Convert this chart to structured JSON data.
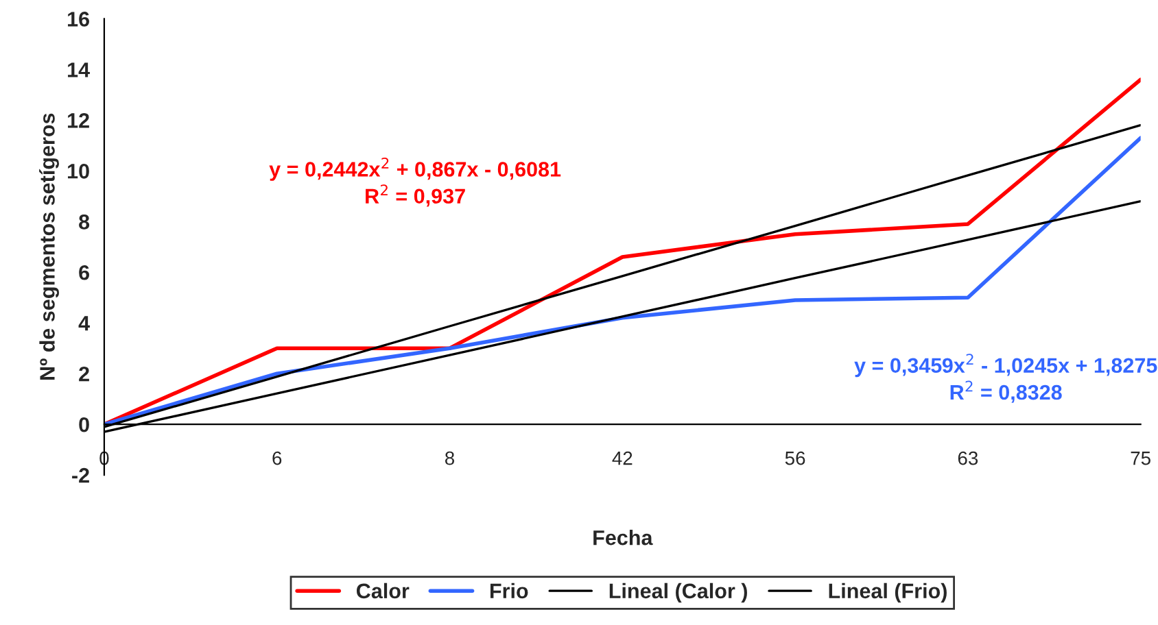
{
  "chart_data": {
    "type": "line",
    "xlabel": "Fecha",
    "ylabel": "Nº de segmentos setígeros",
    "categories": [
      "0",
      "6",
      "8",
      "42",
      "56",
      "63",
      "75"
    ],
    "series": [
      {
        "name": "Calor",
        "color": "#ff0000",
        "values": [
          0,
          3.0,
          3.0,
          6.6,
          7.5,
          7.9,
          13.6
        ]
      },
      {
        "name": "Frio",
        "color": "#3366ff",
        "values": [
          0,
          2.0,
          3.0,
          4.2,
          4.9,
          5.0,
          11.3
        ]
      },
      {
        "name": "Lineal (Calor )",
        "color": "#000000",
        "values": [
          -0.1,
          1.88,
          3.87,
          5.85,
          7.83,
          9.82,
          11.8
        ]
      },
      {
        "name": "Lineal (Frio)",
        "color": "#000000",
        "values": [
          -0.3,
          1.22,
          2.73,
          4.25,
          5.77,
          7.28,
          8.8
        ]
      }
    ],
    "annotations": [
      "y = 0,2442x$^{2}$ + 0,867x - 0,6081",
      "R$^{2}$ = 0,937",
      "y = 0,3459x$^{2}$ - 1,0245x + 1,8275",
      "R$^{2}$ = 0,8328"
    ],
    "ylim": [
      -2,
      16
    ],
    "yticks": [
      -2,
      0,
      2,
      4,
      6,
      8,
      10,
      12,
      14,
      16
    ],
    "grid": false,
    "legend": "bottom",
    "marker": "none",
    "line_style": "solid"
  }
}
